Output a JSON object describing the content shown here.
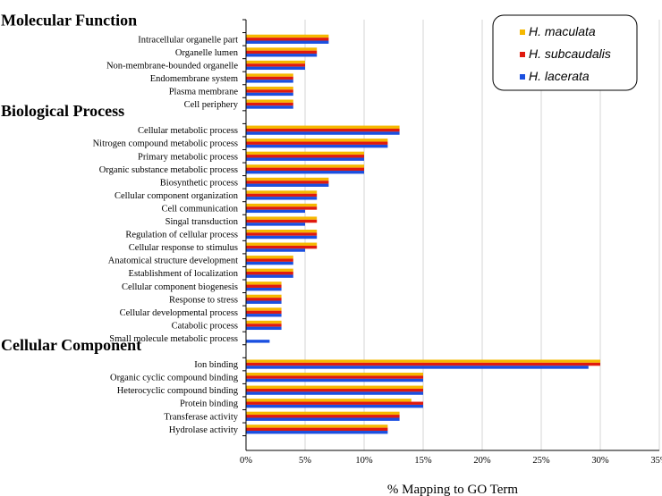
{
  "chart_data": {
    "type": "bar",
    "orientation": "horizontal",
    "xlabel": "% Mapping to GO Term",
    "xlim": [
      0,
      35
    ],
    "x_ticks": [
      "0%",
      "5%",
      "10%",
      "15%",
      "20%",
      "25%",
      "30%",
      "35%"
    ],
    "grid": true,
    "legend_position": "top-right",
    "series": [
      {
        "name": "H. maculata",
        "color": "#f5b800"
      },
      {
        "name": "H. subcaudalis",
        "color": "#e0190e"
      },
      {
        "name": "H. lacerata",
        "color": "#1a4fe0"
      }
    ],
    "groups": [
      {
        "title": "Molecular Function",
        "categories": [
          {
            "label": "Intracellular organelle part",
            "values": [
              7,
              7,
              7
            ]
          },
          {
            "label": "Organelle lumen",
            "values": [
              6,
              6,
              6
            ]
          },
          {
            "label": "Non-membrane-bounded organelle",
            "values": [
              5,
              5,
              5
            ]
          },
          {
            "label": "Endomembrane system",
            "values": [
              4,
              4,
              4
            ]
          },
          {
            "label": "Plasma membrane",
            "values": [
              4,
              4,
              4
            ]
          },
          {
            "label": "Cell periphery",
            "values": [
              4,
              4,
              4
            ]
          }
        ]
      },
      {
        "title": "Biological Process",
        "categories": [
          {
            "label": "Cellular metabolic process",
            "values": [
              13,
              13,
              13
            ]
          },
          {
            "label": "Nitrogen compound metabolic process",
            "values": [
              12,
              12,
              12
            ]
          },
          {
            "label": "Primary metabolic process",
            "values": [
              10,
              10,
              10
            ]
          },
          {
            "label": "Organic substance metabolic process",
            "values": [
              10,
              10,
              10
            ]
          },
          {
            "label": "Biosynthetic process",
            "values": [
              7,
              7,
              7
            ]
          },
          {
            "label": "Cellular component organization",
            "values": [
              6,
              6,
              6
            ]
          },
          {
            "label": "Cell communication",
            "values": [
              6,
              6,
              5
            ]
          },
          {
            "label": "Singal transduction",
            "values": [
              6,
              6,
              5
            ]
          },
          {
            "label": "Regulation of cellular process",
            "values": [
              6,
              6,
              6
            ]
          },
          {
            "label": "Cellular response to stimulus",
            "values": [
              6,
              6,
              5
            ]
          },
          {
            "label": "Anatomical structure development",
            "values": [
              4,
              4,
              4
            ]
          },
          {
            "label": "Establishment of localization",
            "values": [
              4,
              4,
              4
            ]
          },
          {
            "label": "Cellular component biogenesis",
            "values": [
              3,
              3,
              3
            ]
          },
          {
            "label": "Response to stress",
            "values": [
              3,
              3,
              3
            ]
          },
          {
            "label": "Cellular developmental process",
            "values": [
              3,
              3,
              3
            ]
          },
          {
            "label": "Catabolic process",
            "values": [
              3,
              3,
              3
            ]
          },
          {
            "label": "Small molecule metabolic process",
            "values": [
              0,
              0,
              2
            ]
          }
        ]
      },
      {
        "title": "Cellular Component",
        "categories": [
          {
            "label": "Ion binding",
            "values": [
              30,
              30,
              29
            ]
          },
          {
            "label": "Organic cyclic compound binding",
            "values": [
              15,
              15,
              15
            ]
          },
          {
            "label": "Heterocyclic compound binding",
            "values": [
              15,
              15,
              15
            ]
          },
          {
            "label": "Protein binding",
            "values": [
              14,
              15,
              15
            ]
          },
          {
            "label": "Transferase activity",
            "values": [
              13,
              13,
              13
            ]
          },
          {
            "label": "Hydrolase activity",
            "values": [
              12,
              12,
              12
            ]
          }
        ]
      }
    ]
  }
}
